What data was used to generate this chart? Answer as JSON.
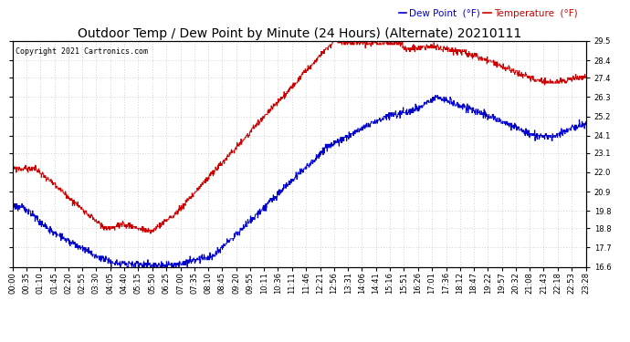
{
  "title": "Outdoor Temp / Dew Point by Minute (24 Hours) (Alternate) 20210111",
  "copyright": "Copyright 2021 Cartronics.com",
  "legend_dew": "Dew Point  (°F)",
  "legend_temp": "Temperature  (°F)",
  "color_dew": "#0000cc",
  "color_temp": "#cc0000",
  "ylim": [
    16.6,
    29.5
  ],
  "yticks": [
    16.6,
    17.7,
    18.8,
    19.8,
    20.9,
    22.0,
    23.1,
    24.1,
    25.2,
    26.3,
    27.4,
    28.4,
    29.5
  ],
  "background_color": "#ffffff",
  "grid_color": "#aaaaaa",
  "title_fontsize": 10,
  "tick_fontsize": 6,
  "copyright_fontsize": 6,
  "legend_fontsize": 7.5,
  "n_minutes": 1440,
  "x_labels": [
    "00:00",
    "00:35",
    "01:10",
    "01:45",
    "02:20",
    "02:55",
    "03:30",
    "04:05",
    "04:40",
    "05:15",
    "05:50",
    "06:25",
    "07:00",
    "07:35",
    "08:10",
    "08:45",
    "09:20",
    "09:55",
    "10:11",
    "10:36",
    "11:11",
    "11:46",
    "12:21",
    "12:56",
    "13:31",
    "14:06",
    "14:41",
    "15:16",
    "15:51",
    "16:26",
    "17:01",
    "17:36",
    "18:12",
    "18:47",
    "19:22",
    "19:57",
    "20:32",
    "21:08",
    "21:43",
    "22:18",
    "22:53",
    "23:28"
  ]
}
